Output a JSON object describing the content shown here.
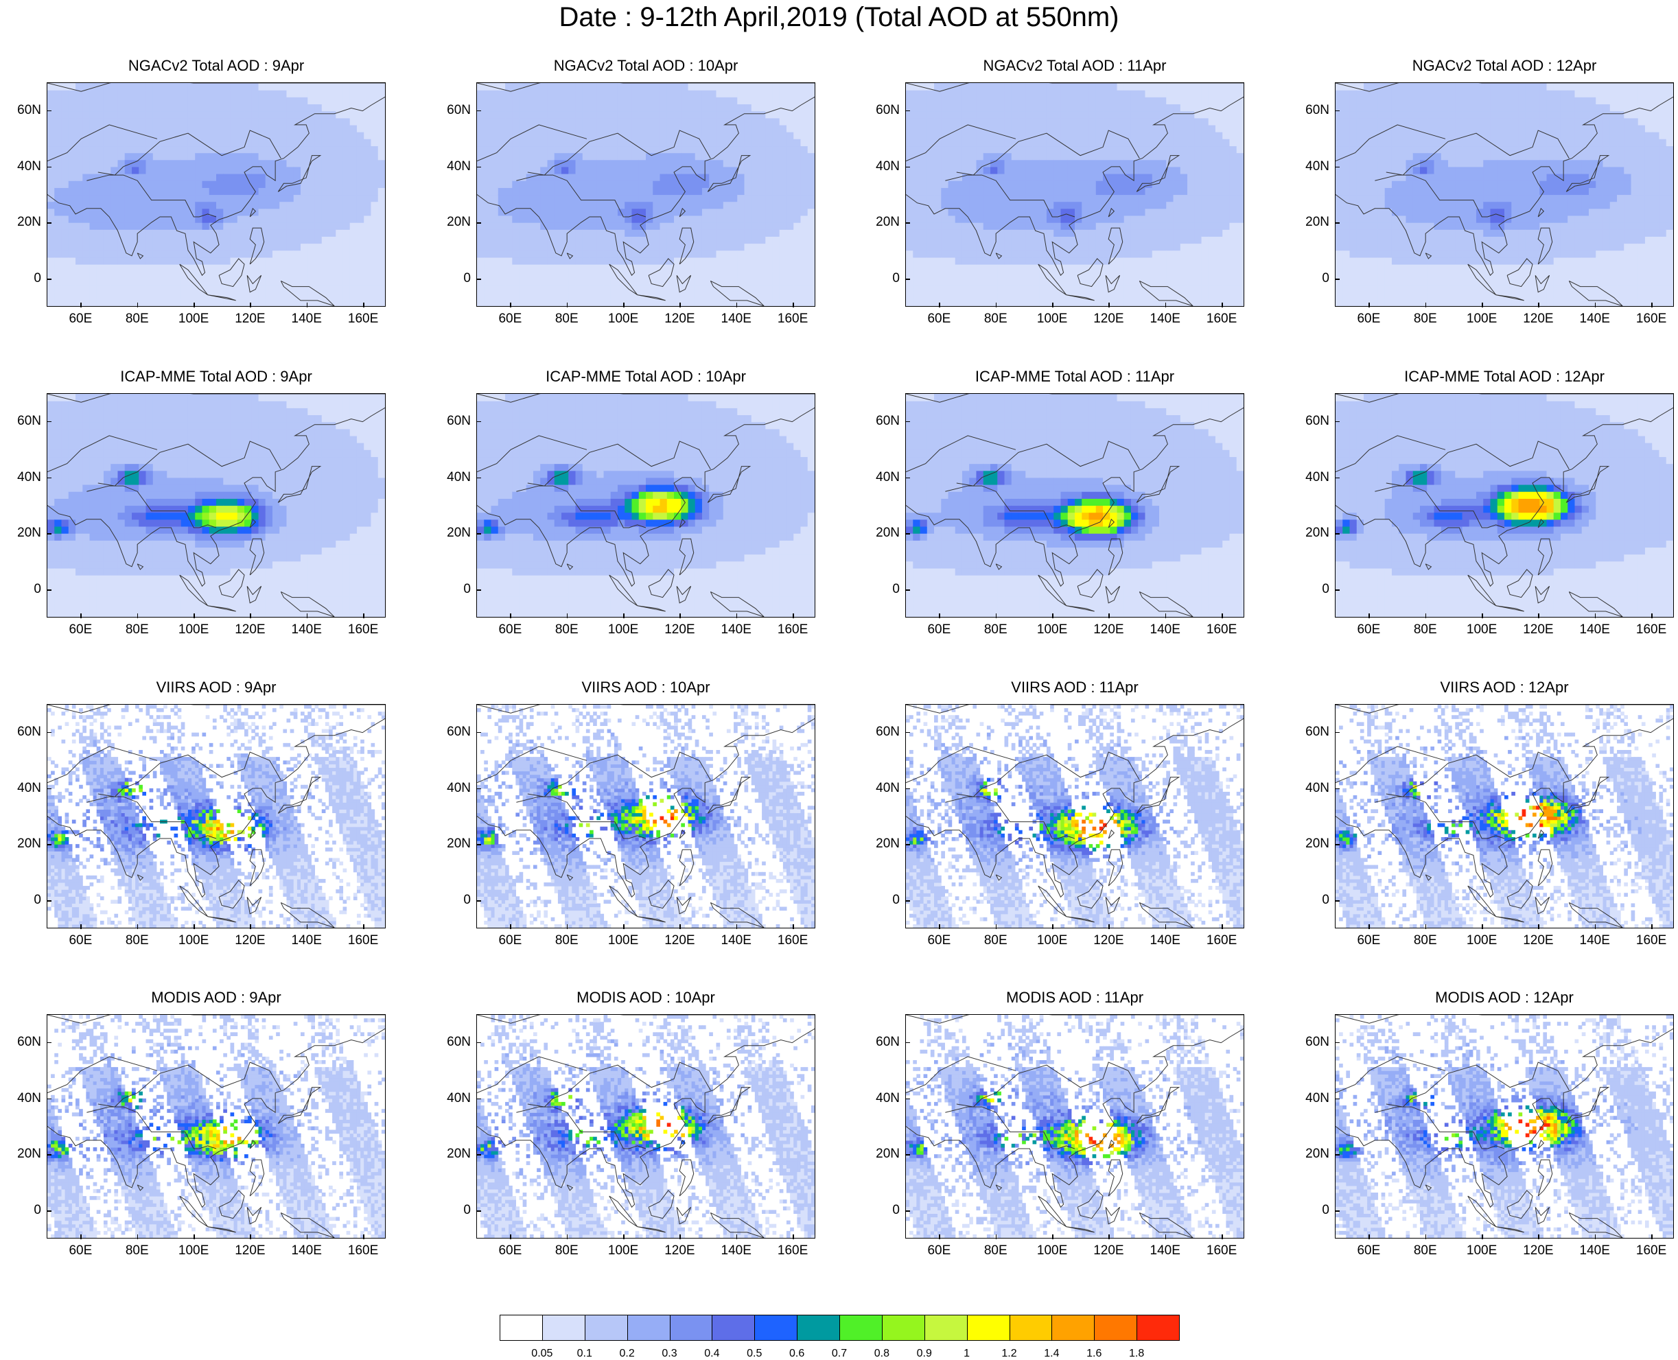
{
  "title": "Date : 9-12th April,2019 (Total AOD at 550nm)",
  "rows": [
    {
      "model": "NGACv2",
      "titles": [
        "NGACv2 Total AOD : 9Apr",
        "NGACv2 Total AOD : 10Apr",
        "NGACv2 Total AOD : 11Apr",
        "NGACv2 Total AOD : 12Apr"
      ]
    },
    {
      "model": "ICAP-MME",
      "titles": [
        "ICAP-MME Total AOD : 9Apr",
        "ICAP-MME Total AOD : 10Apr",
        "ICAP-MME Total AOD : 11Apr",
        "ICAP-MME Total AOD : 12Apr"
      ]
    },
    {
      "model": "VIIRS",
      "titles": [
        "VIIRS AOD : 9Apr",
        "VIIRS AOD : 10Apr",
        "VIIRS AOD : 11Apr",
        "VIIRS AOD : 12Apr"
      ]
    },
    {
      "model": "MODIS",
      "titles": [
        "MODIS AOD : 9Apr",
        "MODIS AOD : 10Apr",
        "MODIS AOD : 11Apr",
        "MODIS AOD : 12Apr"
      ]
    }
  ],
  "axes": {
    "lat_labels": [
      "60N",
      "40N",
      "20N",
      "0"
    ],
    "lat_values": [
      60,
      40,
      20,
      0
    ],
    "lon_labels": [
      "60E",
      "80E",
      "100E",
      "120E",
      "140E",
      "160E"
    ],
    "lon_values": [
      60,
      80,
      100,
      120,
      140,
      160
    ],
    "lon_range": [
      48,
      168
    ],
    "lat_range": [
      -10,
      70
    ]
  },
  "colorbar": {
    "labels": [
      "0.05",
      "0.1",
      "0.2",
      "0.3",
      "0.4",
      "0.5",
      "0.6",
      "0.7",
      "0.8",
      "0.9",
      "1",
      "1.2",
      "1.4",
      "1.6",
      "1.8"
    ],
    "colors": [
      "#ffffff",
      "#d7e0fb",
      "#b7c7f8",
      "#96adf6",
      "#7a92f1",
      "#5e6ee8",
      "#1e63ff",
      "#009aa0",
      "#50f028",
      "#95f51e",
      "#c6f73e",
      "#ffff00",
      "#ffcc00",
      "#ffa200",
      "#ff7800",
      "#ff2a0a"
    ]
  },
  "chart_data": {
    "type": "heatmap",
    "variable": "Total AOD at 550nm",
    "dates": [
      "9Apr",
      "10Apr",
      "11Apr",
      "12Apr"
    ],
    "sources": [
      "NGACv2",
      "ICAP-MME",
      "VIIRS",
      "MODIS"
    ],
    "lon_range": [
      48,
      168
    ],
    "lat_range": [
      -10,
      70
    ],
    "color_levels": [
      0.05,
      0.1,
      0.2,
      0.3,
      0.4,
      0.5,
      0.6,
      0.7,
      0.8,
      0.9,
      1,
      1.2,
      1.4,
      1.6,
      1.8
    ]
  }
}
